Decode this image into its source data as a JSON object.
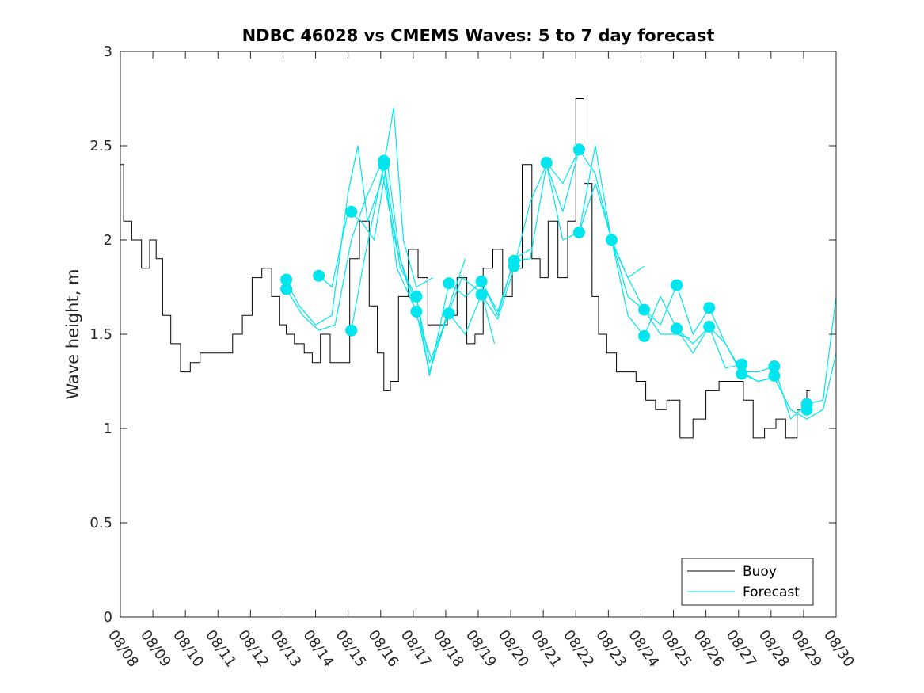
{
  "chart_data": {
    "type": "line",
    "title": "NDBC 46028 vs CMEMS Waves: 5 to 7 day forecast",
    "xlabel": "",
    "ylabel": "Wave height, m",
    "xlim": [
      0,
      22
    ],
    "ylim": [
      0,
      3
    ],
    "x_tick_labels": [
      "08/08",
      "08/09",
      "08/10",
      "08/11",
      "08/12",
      "08/13",
      "08/14",
      "08/15",
      "08/16",
      "08/17",
      "08/18",
      "08/19",
      "08/20",
      "08/21",
      "08/22",
      "08/23",
      "08/24",
      "08/25",
      "08/26",
      "08/27",
      "08/28",
      "08/29",
      "08/30"
    ],
    "y_tick_labels": [
      "0",
      "0.5",
      "1",
      "1.5",
      "2",
      "2.5",
      "3"
    ],
    "legend": [
      {
        "name": "Buoy",
        "color": "#000000"
      },
      {
        "name": "Forecast",
        "color": "#00e5ee"
      }
    ],
    "legend_location": "bottom-right",
    "colors": {
      "buoy": "#000000",
      "forecast": "#00e5ee",
      "axis": "#262626"
    },
    "buoy_series": {
      "name": "Buoy",
      "x": [
        0,
        0.2,
        0.5,
        0.8,
        1,
        1.2,
        1.4,
        1.7,
        2,
        2.3,
        2.6,
        3,
        3.3,
        3.6,
        3.9,
        4.2,
        4.5,
        4.8,
        5,
        5.2,
        5.5,
        5.8,
        6,
        6.3,
        6.6,
        6.9,
        7.2,
        7.5,
        7.8,
        8,
        8.2,
        8.4,
        8.7,
        9,
        9.3,
        9.6,
        9.9,
        10.2,
        10.5,
        10.8,
        11,
        11.3,
        11.6,
        11.9,
        12.2,
        12.5,
        12.8,
        13,
        13.3,
        13.6,
        13.9,
        14.1,
        14.4,
        14.6,
        14.8,
        15.1,
        15.4,
        15.7,
        16,
        16.3,
        16.6,
        17,
        17.4,
        17.8,
        18.2,
        18.6,
        19,
        19.3,
        19.6,
        20,
        20.3,
        20.6,
        21,
        21.2
      ],
      "values": [
        2.4,
        2.1,
        2.0,
        1.85,
        2.0,
        1.9,
        1.6,
        1.45,
        1.3,
        1.35,
        1.4,
        1.4,
        1.4,
        1.5,
        1.6,
        1.8,
        1.85,
        1.7,
        1.55,
        1.5,
        1.45,
        1.4,
        1.35,
        1.5,
        1.35,
        1.35,
        1.9,
        2.1,
        1.65,
        1.4,
        1.2,
        1.25,
        1.7,
        1.95,
        1.8,
        1.55,
        1.55,
        1.6,
        1.8,
        1.45,
        1.5,
        1.85,
        1.95,
        1.7,
        1.85,
        2.4,
        1.9,
        1.8,
        2.1,
        1.8,
        2.1,
        2.75,
        2.3,
        1.7,
        1.5,
        1.4,
        1.3,
        1.3,
        1.25,
        1.15,
        1.1,
        1.15,
        0.95,
        1.05,
        1.2,
        1.25,
        1.25,
        1.15,
        0.95,
        1.0,
        1.05,
        0.95,
        1.1,
        1.2
      ]
    },
    "forecast_series": [
      {
        "name": "Forecast",
        "x": [
          5.1,
          5.5,
          6.0,
          6.5,
          7.0,
          7.3,
          7.6,
          8.0,
          8.4,
          8.7,
          9.1,
          9.6
        ],
        "values": [
          1.78,
          1.65,
          1.55,
          1.6,
          2.25,
          2.5,
          2.1,
          2.3,
          2.7,
          2.0,
          1.75,
          1.8
        ]
      },
      {
        "name": "Forecast",
        "x": [
          5.1,
          5.6,
          6.1,
          6.6,
          7.1,
          7.5,
          8.0,
          8.5,
          9.0
        ],
        "values": [
          1.74,
          1.6,
          1.52,
          1.55,
          2.0,
          2.2,
          2.4,
          1.95,
          1.7
        ]
      },
      {
        "name": "Forecast",
        "x": [
          6.1,
          6.5,
          7.0,
          7.4,
          7.8,
          8.2,
          8.6,
          9.1,
          9.6,
          10.2,
          10.6
        ],
        "values": [
          1.81,
          1.75,
          2.15,
          2.1,
          2.0,
          2.42,
          1.9,
          1.6,
          1.35,
          1.7,
          1.9
        ]
      },
      {
        "name": "Forecast",
        "x": [
          7.1,
          7.5,
          8.1,
          8.5,
          9.1,
          9.5,
          10.1,
          10.5,
          11.1,
          11.5
        ],
        "values": [
          1.52,
          1.9,
          2.4,
          1.85,
          1.62,
          1.3,
          1.62,
          1.8,
          1.72,
          1.45
        ]
      },
      {
        "name": "Forecast",
        "x": [
          8.1,
          8.6,
          9.1,
          9.5,
          10.1,
          10.6,
          11.1,
          11.6,
          12.1,
          12.6
        ],
        "values": [
          2.42,
          1.85,
          1.7,
          1.28,
          1.77,
          1.7,
          1.78,
          1.6,
          1.9,
          1.95
        ]
      },
      {
        "name": "Forecast",
        "x": [
          9.1,
          9.5,
          10.1,
          10.6,
          11.1,
          11.6,
          12.1,
          12.6,
          13.1,
          13.6,
          14.1
        ],
        "values": [
          1.7,
          1.35,
          1.61,
          1.5,
          1.71,
          1.58,
          1.85,
          2.2,
          2.4,
          2.15,
          2.48
        ]
      },
      {
        "name": "Forecast",
        "x": [
          11.1,
          11.6,
          12.1,
          12.6,
          13.1,
          13.6,
          14.1,
          14.6,
          15.1,
          15.6,
          16.1
        ],
        "values": [
          1.78,
          1.62,
          1.89,
          1.9,
          2.4,
          2.0,
          2.04,
          2.5,
          1.99,
          1.8,
          1.86
        ]
      },
      {
        "name": "Forecast",
        "x": [
          13.1,
          13.6,
          14.1,
          14.6,
          15.1,
          15.6,
          16.1,
          16.6,
          17.1,
          17.5
        ],
        "values": [
          2.41,
          2.3,
          2.48,
          2.35,
          2.0,
          1.8,
          1.63,
          1.5,
          1.5,
          1.48
        ]
      },
      {
        "name": "Forecast",
        "x": [
          14.1,
          14.6,
          15.1,
          15.6,
          16.1,
          16.6,
          17.1,
          17.6,
          18.1,
          18.6,
          19.1
        ],
        "values": [
          2.04,
          2.3,
          2.0,
          1.6,
          1.49,
          1.7,
          1.53,
          1.45,
          1.54,
          1.32,
          1.34
        ]
      },
      {
        "name": "Forecast",
        "x": [
          15.1,
          15.6,
          16.1,
          16.6,
          17.1,
          17.6,
          18.1,
          18.6,
          19.1,
          19.6,
          20.1,
          20.6
        ],
        "values": [
          2.0,
          1.7,
          1.63,
          1.55,
          1.76,
          1.5,
          1.64,
          1.45,
          1.29,
          1.25,
          1.27,
          1.1
        ]
      },
      {
        "name": "Forecast",
        "x": [
          17.1,
          17.6,
          18.1,
          18.6,
          19.1,
          19.6,
          20.1,
          20.6,
          21.1,
          21.6,
          22.0
        ],
        "values": [
          1.53,
          1.4,
          1.54,
          1.45,
          1.3,
          1.3,
          1.33,
          1.05,
          1.13,
          1.15,
          1.7
        ]
      },
      {
        "name": "Forecast",
        "x": [
          19.1,
          19.6,
          20.1,
          20.6,
          21.1,
          21.6,
          22.0
        ],
        "values": [
          1.3,
          1.25,
          1.27,
          1.1,
          1.05,
          1.1,
          1.4
        ]
      }
    ],
    "forecast_markers": {
      "x": [
        5.1,
        5.1,
        6.1,
        7.1,
        7.1,
        8.1,
        8.1,
        9.1,
        9.1,
        10.1,
        10.1,
        11.1,
        11.1,
        12.1,
        12.1,
        13.1,
        14.1,
        14.1,
        15.1,
        16.1,
        16.1,
        17.1,
        17.1,
        18.1,
        18.1,
        19.1,
        19.1,
        20.1,
        20.1,
        21.1,
        21.1
      ],
      "values": [
        1.79,
        1.74,
        1.81,
        2.15,
        1.52,
        2.42,
        2.4,
        1.7,
        1.62,
        1.77,
        1.61,
        1.78,
        1.71,
        1.89,
        1.86,
        2.41,
        2.48,
        2.04,
        2.0,
        1.63,
        1.49,
        1.76,
        1.53,
        1.64,
        1.54,
        1.34,
        1.29,
        1.33,
        1.28,
        1.13,
        1.1
      ]
    }
  }
}
